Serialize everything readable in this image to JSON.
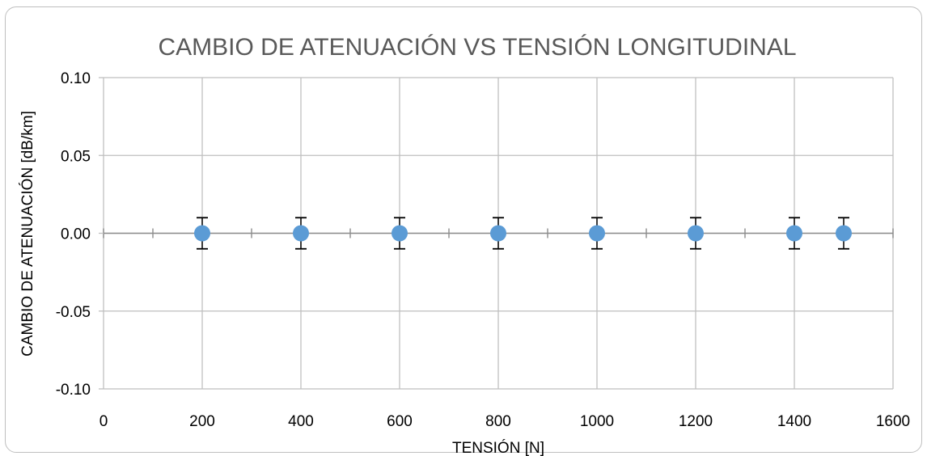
{
  "chart_data": {
    "type": "scatter",
    "title": "CAMBIO DE ATENUACIÓN VS TENSIÓN LONGITUDINAL",
    "xlabel": "TENSIÓN [N]",
    "ylabel": "CAMBIO DE ATENUACIÓN [dB/km]",
    "xlim": [
      0,
      1600
    ],
    "ylim": [
      -0.1,
      0.1
    ],
    "x_ticks": [
      "0",
      "200",
      "400",
      "600",
      "800",
      "1000",
      "1200",
      "1400",
      "1600"
    ],
    "x_tick_values": [
      0,
      200,
      400,
      600,
      800,
      1000,
      1200,
      1400,
      1600
    ],
    "x_minor_ticks": [
      100,
      300,
      500,
      700,
      900,
      1100,
      1300,
      1500
    ],
    "y_ticks": [
      "0.10",
      "0.05",
      "0.00",
      "-0.05",
      "-0.10"
    ],
    "y_tick_values": [
      0.1,
      0.05,
      0,
      -0.05,
      -0.1
    ],
    "grid": true,
    "series": [
      {
        "x": [
          200,
          400,
          600,
          800,
          1000,
          1200,
          1400,
          1500
        ],
        "y": [
          0,
          0,
          0,
          0,
          0,
          0,
          0,
          0
        ],
        "error": 0.01,
        "color": "#5b9bd5"
      }
    ]
  }
}
